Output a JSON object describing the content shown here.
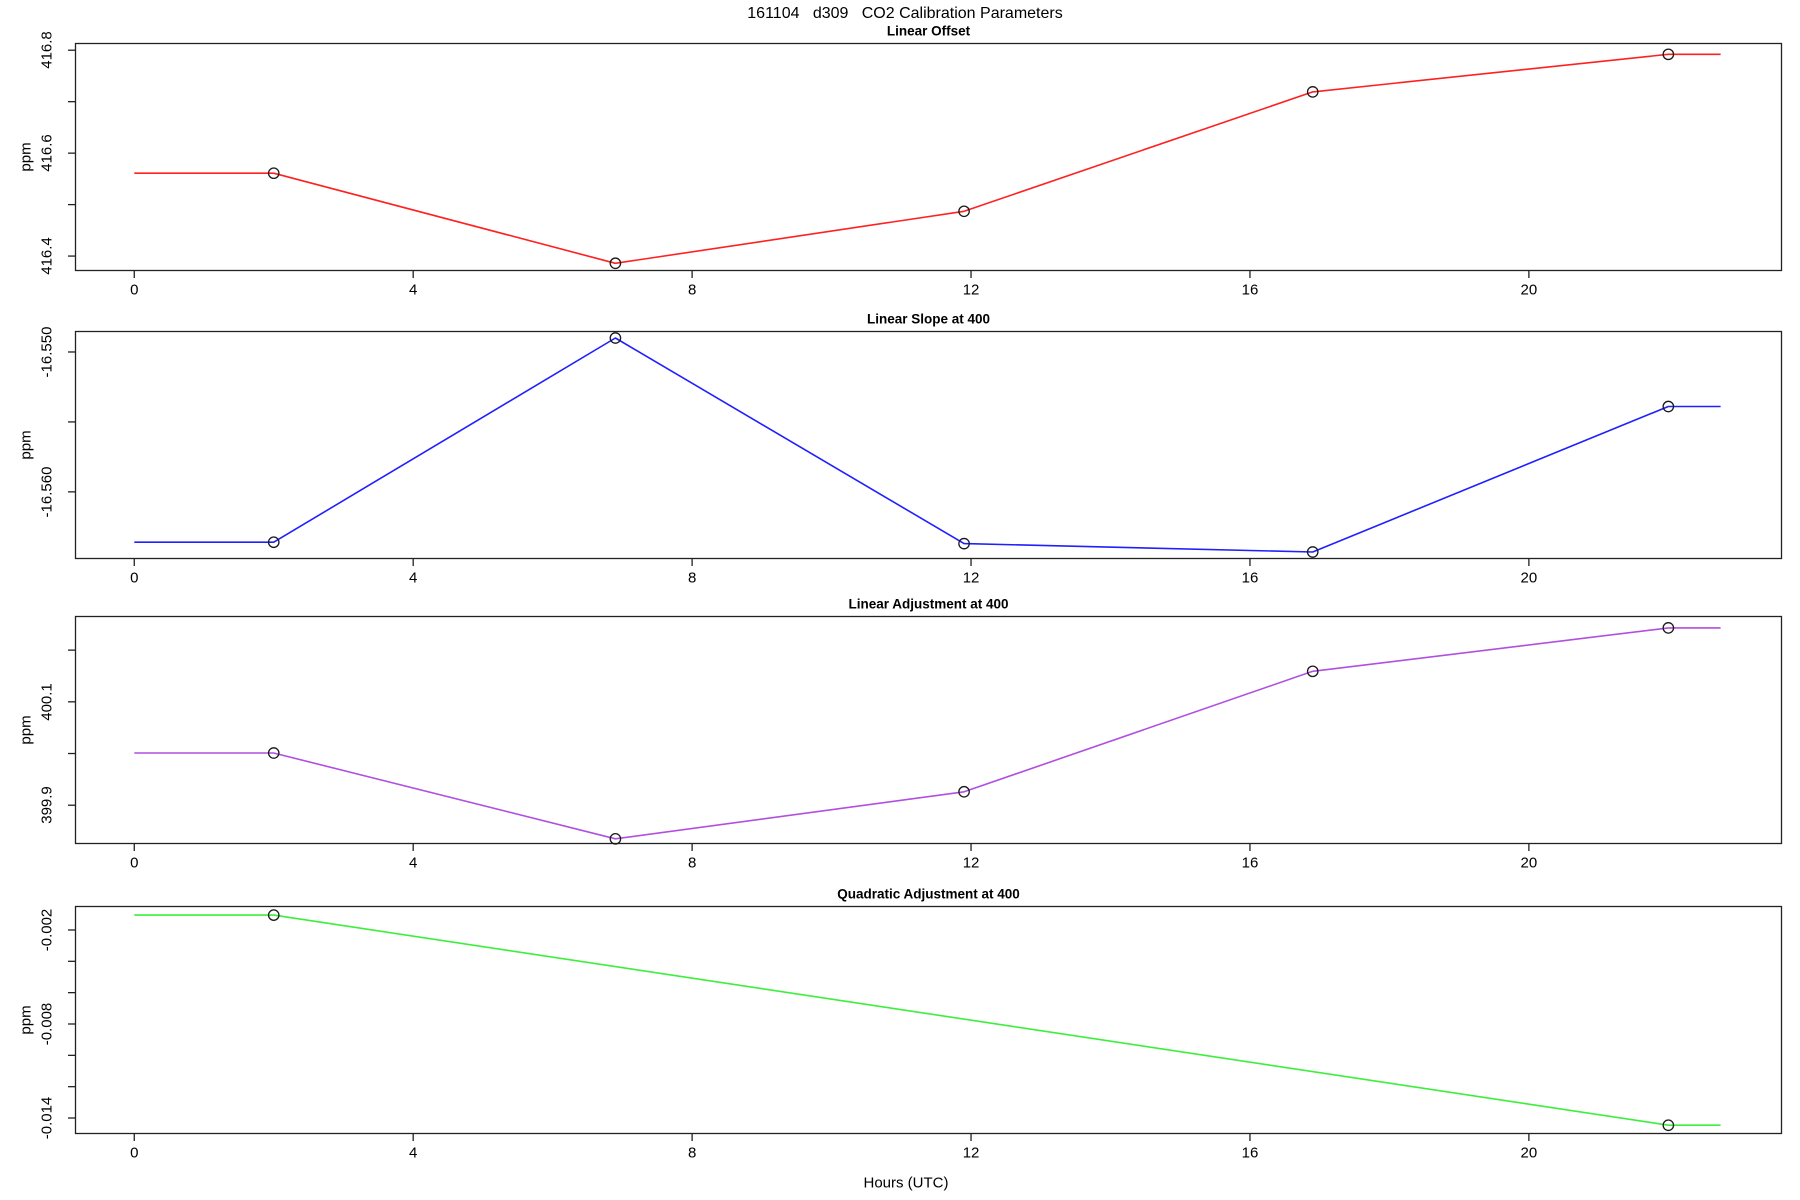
{
  "figure_title": "161104   d309   CO2 Calibration Parameters",
  "x_axis": {
    "label": "Hours (UTC)",
    "ticks": [
      0,
      4,
      8,
      12,
      16,
      20
    ],
    "xlim": [
      -0.85,
      23.63
    ]
  },
  "marker": "open-circle",
  "marker_color": "#1a1a1a",
  "axis_color": "#222222",
  "chart_data": [
    {
      "id": "linear-offset",
      "type": "line",
      "title": "Linear Offset",
      "ylabel": "ppm",
      "color": "#ff2020",
      "ylim": [
        416.371,
        416.814
      ],
      "yticks": [
        {
          "v": 416.4,
          "label": "416.4"
        },
        {
          "v": 416.5,
          "label": ""
        },
        {
          "v": 416.6,
          "label": "416.6"
        },
        {
          "v": 416.7,
          "label": ""
        },
        {
          "v": 416.8,
          "label": "416.8"
        }
      ],
      "x": [
        2,
        6.9,
        11.9,
        16.9,
        22
      ],
      "y": [
        416.561,
        416.386,
        416.487,
        416.719,
        416.792
      ],
      "line_extends_x": [
        0,
        22.75
      ]
    },
    {
      "id": "linear-slope-at-400",
      "type": "line",
      "title": "Linear Slope at 400",
      "ylabel": "ppm",
      "color": "#2020ff",
      "ylim": [
        -16.5648,
        -16.5485
      ],
      "yticks": [
        {
          "v": -16.55,
          "label": "-16.550"
        },
        {
          "v": -16.555,
          "label": ""
        },
        {
          "v": -16.56,
          "label": "-16.560"
        }
      ],
      "x": [
        2,
        6.9,
        11.9,
        16.9,
        22
      ],
      "y": [
        -16.5636,
        -16.549,
        -16.5637,
        -16.5643,
        -16.5539
      ],
      "line_extends_x": [
        0,
        22.75
      ]
    },
    {
      "id": "linear-adjustment-at-400",
      "type": "line",
      "title": "Linear Adjustment at 400",
      "ylabel": "ppm",
      "color": "#b14fe0",
      "ylim": [
        399.825,
        400.266
      ],
      "yticks": [
        {
          "v": 399.9,
          "label": "399.9"
        },
        {
          "v": 400.0,
          "label": ""
        },
        {
          "v": 400.1,
          "label": "400.1"
        },
        {
          "v": 400.2,
          "label": ""
        }
      ],
      "x": [
        2,
        6.9,
        11.9,
        16.9,
        22
      ],
      "y": [
        400.001,
        399.835,
        399.926,
        400.159,
        400.243
      ],
      "line_extends_x": [
        0,
        22.75
      ]
    },
    {
      "id": "quadratic-adjustment-at-400",
      "type": "line",
      "title": "Quadratic Adjustment at 400",
      "ylabel": "ppm",
      "color": "#3bef3b",
      "ylim": [
        -0.01502,
        -0.00047
      ],
      "yticks": [
        {
          "v": -0.002,
          "label": "-0.002"
        },
        {
          "v": -0.004,
          "label": ""
        },
        {
          "v": -0.006,
          "label": ""
        },
        {
          "v": -0.008,
          "label": "-0.008"
        },
        {
          "v": -0.01,
          "label": ""
        },
        {
          "v": -0.012,
          "label": ""
        },
        {
          "v": -0.014,
          "label": "-0.014"
        }
      ],
      "x": [
        2,
        22
      ],
      "y": [
        -0.00105,
        -0.01446
      ],
      "line_extends_x": [
        0,
        22.75
      ]
    }
  ]
}
